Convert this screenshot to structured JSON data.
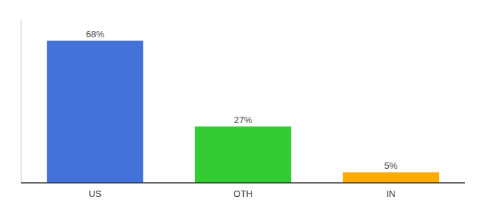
{
  "chart_data": {
    "type": "bar",
    "categories": [
      "US",
      "OTH",
      "IN"
    ],
    "values": [
      68,
      27,
      5
    ],
    "value_labels": [
      "68%",
      "27%",
      "5%"
    ],
    "colors": [
      "#4472db",
      "#33cc33",
      "#ffaa00"
    ],
    "ylim": [
      0,
      78
    ],
    "data_labels": true,
    "tick_labels": "x"
  }
}
